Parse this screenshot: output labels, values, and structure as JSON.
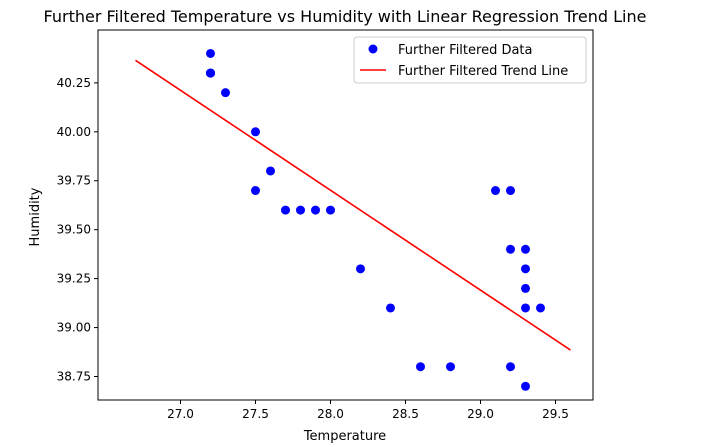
{
  "chart_data": {
    "type": "scatter",
    "title": "Further Filtered Temperature vs Humidity with Linear Regression Trend Line",
    "xlabel": "Temperature",
    "ylabel": "Humidity",
    "xlim": [
      26.45,
      29.75
    ],
    "ylim": [
      38.63,
      40.52
    ],
    "xticks": [
      27.0,
      27.5,
      28.0,
      28.5,
      29.0,
      29.5
    ],
    "xtick_labels": [
      "27.0",
      "27.5",
      "28.0",
      "28.5",
      "29.0",
      "29.5"
    ],
    "yticks": [
      38.75,
      39.0,
      39.25,
      39.5,
      39.75,
      40.0,
      40.25
    ],
    "ytick_labels": [
      "38.75",
      "39.00",
      "39.25",
      "39.50",
      "39.75",
      "40.00",
      "40.25"
    ],
    "grid": false,
    "legend_position": "top-right",
    "series": [
      {
        "name": "Further Filtered Data",
        "kind": "scatter",
        "color": "#0000ff",
        "points": [
          {
            "x": 27.2,
            "y": 40.4
          },
          {
            "x": 27.2,
            "y": 40.3
          },
          {
            "x": 27.2,
            "y": 40.3
          },
          {
            "x": 27.2,
            "y": 40.3
          },
          {
            "x": 27.3,
            "y": 40.2
          },
          {
            "x": 27.5,
            "y": 40.0
          },
          {
            "x": 27.5,
            "y": 39.7
          },
          {
            "x": 27.6,
            "y": 39.8
          },
          {
            "x": 27.7,
            "y": 39.6
          },
          {
            "x": 27.8,
            "y": 39.6
          },
          {
            "x": 27.9,
            "y": 39.6
          },
          {
            "x": 28.0,
            "y": 39.6
          },
          {
            "x": 28.2,
            "y": 39.3
          },
          {
            "x": 28.4,
            "y": 39.1
          },
          {
            "x": 28.6,
            "y": 38.8
          },
          {
            "x": 28.8,
            "y": 38.8
          },
          {
            "x": 29.1,
            "y": 39.7
          },
          {
            "x": 29.2,
            "y": 39.7
          },
          {
            "x": 29.2,
            "y": 39.4
          },
          {
            "x": 29.2,
            "y": 38.8
          },
          {
            "x": 29.3,
            "y": 39.4
          },
          {
            "x": 29.3,
            "y": 39.3
          },
          {
            "x": 29.3,
            "y": 39.2
          },
          {
            "x": 29.3,
            "y": 39.1
          },
          {
            "x": 29.4,
            "y": 39.1
          },
          {
            "x": 29.3,
            "y": 38.7
          }
        ]
      },
      {
        "name": "Further Filtered Trend Line",
        "kind": "line",
        "color": "#ff0000",
        "points": [
          {
            "x": 26.7,
            "y": 40.365
          },
          {
            "x": 29.6,
            "y": 38.885
          }
        ]
      }
    ]
  }
}
